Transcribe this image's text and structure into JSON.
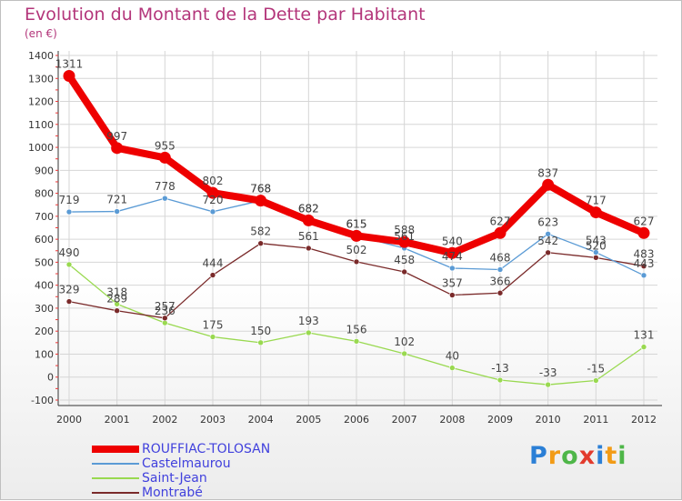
{
  "chart_data": {
    "type": "line",
    "title": "Evolution du Montant de la Dette par Habitant",
    "unit_label": "(en €)",
    "categories": [
      "2000",
      "2001",
      "2002",
      "2003",
      "2004",
      "2005",
      "2006",
      "2007",
      "2008",
      "2009",
      "2010",
      "2011",
      "2012"
    ],
    "ylim": [
      -100,
      1400
    ],
    "yticks": [
      -100,
      0,
      100,
      200,
      300,
      400,
      500,
      600,
      700,
      800,
      900,
      1000,
      1100,
      1200,
      1300,
      1400
    ],
    "grid": true,
    "series": [
      {
        "name": "ROUFFIAC-TOLOSAN",
        "color": "#ee0000",
        "values": [
          1311,
          997,
          955,
          802,
          768,
          682,
          615,
          588,
          540,
          627,
          837,
          717,
          627
        ]
      },
      {
        "name": "Castelmaurou",
        "color": "#5b9bd5",
        "values": [
          719,
          721,
          778,
          720,
          768,
          682,
          615,
          561,
          474,
          468,
          623,
          543,
          443
        ]
      },
      {
        "name": "Saint-Jean",
        "color": "#99d950",
        "values": [
          490,
          318,
          236,
          175,
          150,
          193,
          156,
          102,
          40,
          -13,
          -33,
          -15,
          131
        ]
      },
      {
        "name": "Montrabé",
        "color": "#7a2a2a",
        "values": [
          329,
          289,
          257,
          444,
          582,
          561,
          502,
          458,
          357,
          366,
          542,
          520,
          483
        ]
      }
    ]
  },
  "logo": {
    "p": "P",
    "r": "r",
    "o1": "o",
    "x": "x",
    "i1": "i",
    "t": "t",
    "i2": "i"
  }
}
